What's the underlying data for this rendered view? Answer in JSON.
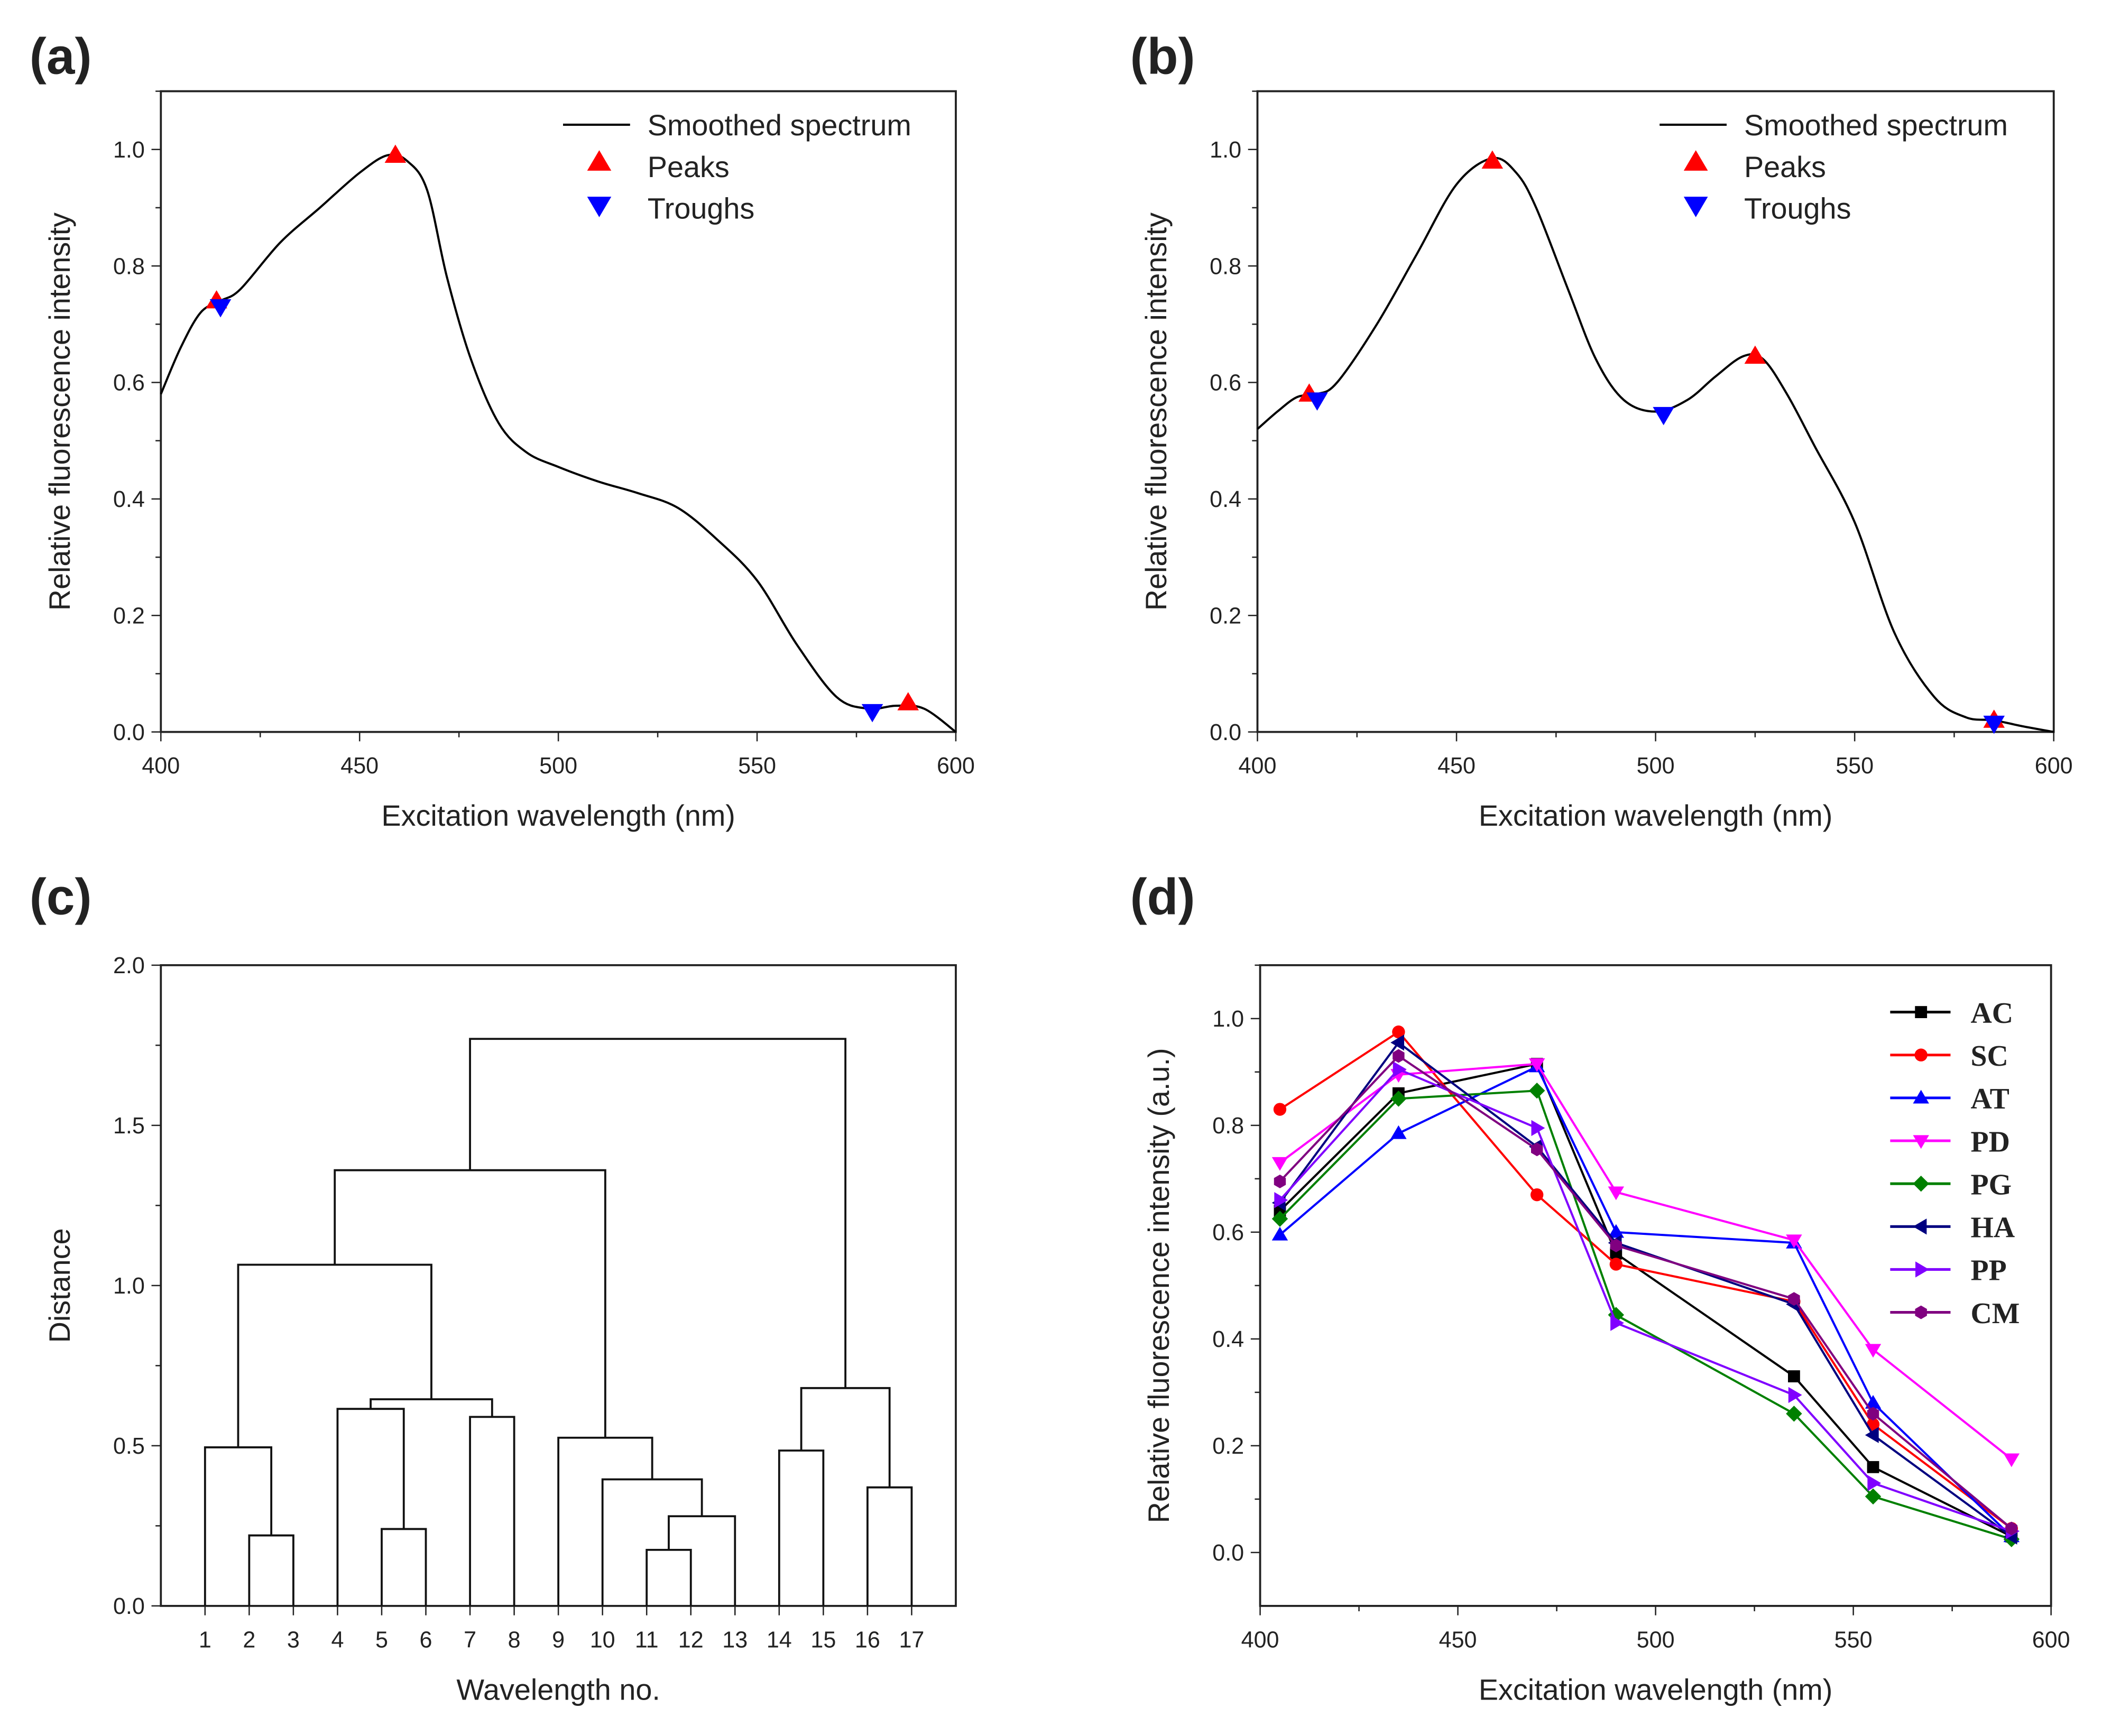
{
  "chart_data": [
    {
      "panel_label": "(a)",
      "type": "line",
      "xlabel": "Excitation wavelength (nm)",
      "ylabel": "Relative fluorescence intensity",
      "xlim": [
        400,
        600
      ],
      "ylim": [
        0,
        1.1
      ],
      "xticks": [
        "400",
        "450",
        "500",
        "550",
        "600"
      ],
      "yticks": [
        "0.0",
        "0.2",
        "0.4",
        "0.6",
        "0.8",
        "1.0"
      ],
      "legend_position": "top-right",
      "legend": [
        "Smoothed spectrum",
        "Peaks",
        "Troughs"
      ],
      "colors": {
        "line": "#000000",
        "peaks": "#ff0000",
        "troughs": "#0000ff"
      },
      "series": [
        {
          "name": "Smoothed spectrum",
          "x": [
            400,
            405,
            410,
            415,
            420,
            430,
            440,
            450,
            457,
            462,
            467,
            472,
            478,
            485,
            492,
            500,
            510,
            520,
            530,
            540,
            550,
            560,
            570,
            578,
            585,
            592,
            600
          ],
          "y": [
            0.58,
            0.66,
            0.72,
            0.74,
            0.76,
            0.84,
            0.9,
            0.96,
            0.99,
            0.98,
            0.93,
            0.78,
            0.64,
            0.53,
            0.48,
            0.455,
            0.43,
            0.41,
            0.385,
            0.33,
            0.26,
            0.15,
            0.06,
            0.04,
            0.045,
            0.04,
            0.0
          ]
        },
        {
          "name": "Peaks",
          "x": [
            414,
            459,
            588
          ],
          "y": [
            0.74,
            0.99,
            0.05
          ]
        },
        {
          "name": "Troughs",
          "x": [
            415,
            579
          ],
          "y": [
            0.73,
            0.035
          ]
        }
      ]
    },
    {
      "panel_label": "(b)",
      "type": "line",
      "xlabel": "Excitation wavelength (nm)",
      "ylabel": "Relative fluorescence intensity",
      "xlim": [
        400,
        600
      ],
      "ylim": [
        0,
        1.1
      ],
      "xticks": [
        "400",
        "450",
        "500",
        "550",
        "600"
      ],
      "yticks": [
        "0.0",
        "0.2",
        "0.4",
        "0.6",
        "0.8",
        "1.0"
      ],
      "legend_position": "top-right",
      "legend": [
        "Smoothed spectrum",
        "Peaks",
        "Troughs"
      ],
      "colors": {
        "line": "#000000",
        "peaks": "#ff0000",
        "troughs": "#0000ff"
      },
      "series": [
        {
          "name": "Smoothed spectrum",
          "x": [
            400,
            405,
            410,
            415,
            420,
            430,
            440,
            450,
            459,
            465,
            470,
            478,
            485,
            492,
            500,
            508,
            515,
            522,
            527,
            533,
            540,
            550,
            560,
            570,
            578,
            585,
            592,
            600
          ],
          "y": [
            0.52,
            0.55,
            0.575,
            0.58,
            0.6,
            0.7,
            0.82,
            0.94,
            0.985,
            0.96,
            0.9,
            0.76,
            0.64,
            0.57,
            0.55,
            0.57,
            0.61,
            0.645,
            0.64,
            0.58,
            0.49,
            0.36,
            0.17,
            0.06,
            0.025,
            0.02,
            0.01,
            0.0
          ]
        },
        {
          "name": "Peaks",
          "x": [
            413,
            459,
            525,
            585
          ],
          "y": [
            0.58,
            0.98,
            0.645,
            0.02
          ]
        },
        {
          "name": "Troughs",
          "x": [
            415,
            502,
            585
          ],
          "y": [
            0.57,
            0.545,
            0.015
          ]
        }
      ]
    },
    {
      "panel_label": "(c)",
      "type": "dendrogram",
      "xlabel": "Wavelength no.",
      "ylabel": "Distance",
      "ylim": [
        0,
        2.0
      ],
      "xticks": [
        "1",
        "2",
        "3",
        "4",
        "5",
        "6",
        "7",
        "8",
        "9",
        "10",
        "11",
        "12",
        "13",
        "14",
        "15",
        "16",
        "17"
      ],
      "yticks": [
        "0.0",
        "0.5",
        "1.0",
        "1.5",
        "2.0"
      ],
      "merges": [
        {
          "a": [
            2
          ],
          "b": [
            3
          ],
          "height": 0.22
        },
        {
          "a": [
            1
          ],
          "b": [
            2,
            3
          ],
          "height": 0.495
        },
        {
          "a": [
            5
          ],
          "b": [
            6
          ],
          "height": 0.24
        },
        {
          "a": [
            4
          ],
          "b": [
            5,
            6
          ],
          "height": 0.615
        },
        {
          "a": [
            7
          ],
          "b": [
            8
          ],
          "height": 0.59
        },
        {
          "a": [
            4,
            5,
            6
          ],
          "b": [
            7,
            8
          ],
          "height": 0.645
        },
        {
          "a": [
            1,
            2,
            3
          ],
          "b": [
            4,
            5,
            6,
            7,
            8
          ],
          "height": 1.065
        },
        {
          "a": [
            11
          ],
          "b": [
            12
          ],
          "height": 0.175
        },
        {
          "a": [
            11,
            12
          ],
          "b": [
            13
          ],
          "height": 0.28
        },
        {
          "a": [
            10
          ],
          "b": [
            11,
            12,
            13
          ],
          "height": 0.395
        },
        {
          "a": [
            9
          ],
          "b": [
            10,
            11,
            12,
            13
          ],
          "height": 0.525
        },
        {
          "a": [
            1,
            2,
            3,
            4,
            5,
            6,
            7,
            8
          ],
          "b": [
            9,
            10,
            11,
            12,
            13
          ],
          "height": 1.36
        },
        {
          "a": [
            14
          ],
          "b": [
            15
          ],
          "height": 0.485
        },
        {
          "a": [
            16
          ],
          "b": [
            17
          ],
          "height": 0.37
        },
        {
          "a": [
            14,
            15
          ],
          "b": [
            16,
            17
          ],
          "height": 0.68
        },
        {
          "a": [
            1,
            2,
            3,
            4,
            5,
            6,
            7,
            8,
            9,
            10,
            11,
            12,
            13
          ],
          "b": [
            14,
            15,
            16,
            17
          ],
          "height": 1.77
        }
      ]
    },
    {
      "panel_label": "(d)",
      "type": "line",
      "xlabel": "Excitation wavelength (nm)",
      "ylabel": "Relative fluorescence intensity (a.u.)",
      "xlim": [
        400,
        600
      ],
      "ylim": [
        -0.1,
        1.1
      ],
      "xticks": [
        "400",
        "450",
        "500",
        "550",
        "600"
      ],
      "yticks": [
        "0.0",
        "0.2",
        "0.4",
        "0.6",
        "0.8",
        "1.0"
      ],
      "legend_position": "top-right",
      "x": [
        405,
        435,
        470,
        490,
        535,
        555,
        590
      ],
      "series": [
        {
          "name": "AC",
          "color": "#000000",
          "marker": "square",
          "values": [
            0.64,
            0.86,
            0.915,
            0.56,
            0.33,
            0.16,
            0.03
          ]
        },
        {
          "name": "SC",
          "color": "#ff0000",
          "marker": "circle",
          "values": [
            0.83,
            0.975,
            0.67,
            0.54,
            0.47,
            0.24,
            0.045
          ]
        },
        {
          "name": "AT",
          "color": "#0000ff",
          "marker": "triangle-up",
          "values": [
            0.595,
            0.785,
            0.91,
            0.6,
            0.58,
            0.28,
            0.03
          ]
        },
        {
          "name": "PD",
          "color": "#ff00ff",
          "marker": "triangle-down",
          "values": [
            0.73,
            0.895,
            0.915,
            0.675,
            0.585,
            0.38,
            0.175
          ]
        },
        {
          "name": "PG",
          "color": "#008000",
          "marker": "diamond",
          "values": [
            0.625,
            0.85,
            0.865,
            0.445,
            0.26,
            0.105,
            0.025
          ]
        },
        {
          "name": "HA",
          "color": "#000080",
          "marker": "triangle-left",
          "values": [
            0.655,
            0.955,
            0.76,
            0.58,
            0.465,
            0.22,
            0.03
          ]
        },
        {
          "name": "PP",
          "color": "#8000ff",
          "marker": "triangle-right",
          "values": [
            0.66,
            0.905,
            0.795,
            0.43,
            0.295,
            0.13,
            0.04
          ]
        },
        {
          "name": "CM",
          "color": "#800080",
          "marker": "hexagon",
          "values": [
            0.695,
            0.93,
            0.755,
            0.575,
            0.475,
            0.26,
            0.045
          ]
        }
      ]
    }
  ]
}
